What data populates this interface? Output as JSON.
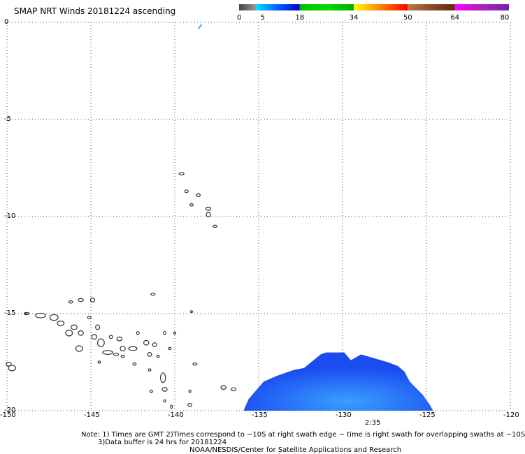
{
  "title": "SMAP NRT Winds 20181224 ascending",
  "colorbar": {
    "labels": [
      "0",
      "5",
      "18",
      "34",
      "50",
      "64",
      "80"
    ],
    "segments": [
      {
        "from": 0,
        "to": 5,
        "colors": [
          "#444444",
          "#999999"
        ]
      },
      {
        "from": 5,
        "to": 18,
        "colors": [
          "#00e0ff",
          "#0060ff",
          "#0000cc"
        ]
      },
      {
        "from": 18,
        "to": 34,
        "colors": [
          "#00bb00",
          "#00dd00",
          "#00aa00"
        ]
      },
      {
        "from": 34,
        "to": 50,
        "colors": [
          "#ffff00",
          "#ffaa00",
          "#ff5500",
          "#ff0000"
        ]
      },
      {
        "from": 50,
        "to": 64,
        "colors": [
          "#bb7744",
          "#8a4a2a",
          "#5a2a12"
        ]
      },
      {
        "from": 64,
        "to": 80,
        "colors": [
          "#ff00ff",
          "#aa22bb",
          "#7722aa"
        ]
      }
    ]
  },
  "map": {
    "lat_range": [
      -20,
      0
    ],
    "lon_range": [
      -150,
      -120
    ],
    "lat_ticks": [
      "0",
      "-5",
      "-10",
      "-15",
      "-20"
    ],
    "lon_ticks": [
      "-150",
      "-145",
      "-140",
      "-135",
      "-130",
      "-125",
      "-120"
    ],
    "time_label": "2:35",
    "swath_color": "#1a4cf0",
    "swath_highlight": "#3aa0ff"
  },
  "notes": {
    "line1": "Note: 1) Times are GMT 2)Times correspond to ~10S at right swath edge ~ time is right swath for overlapping swaths at ~10S",
    "line2": "3)Data buffer is 24 hrs for 20181224",
    "line3": "NOAA/NESDIS/Center for Satellite Applications and Research"
  }
}
